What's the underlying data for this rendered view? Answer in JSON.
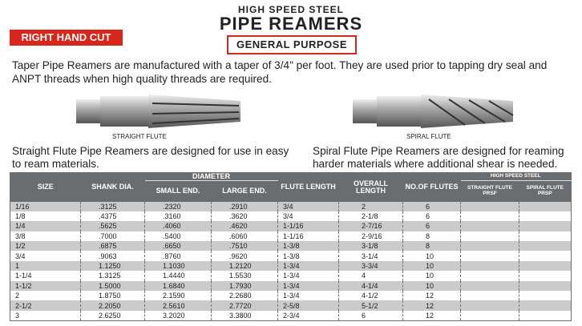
{
  "header": {
    "supertitle": "HIGH SPEED STEEL",
    "title": "PIPE REAMERS",
    "badge": "RIGHT HAND CUT",
    "category": "GENERAL PURPOSE"
  },
  "intro": "Taper Pipe Reamers are manufactured with a taper of 3/4\" per foot. They are used prior to tapping dry seal and ANPT threads when high quality threads are required.",
  "products": [
    {
      "label": "STRAIGHT FLUTE",
      "caption": "Straight Flute Pipe Reamers are designed for use in easy to ream materials."
    },
    {
      "label": "SPIRAL FLUTE",
      "caption": "Spiral Flute Pipe Reamers are designed for reaming harder materials where additional shear is needed."
    }
  ],
  "table": {
    "headers": {
      "size": "SIZE",
      "shank": "SHANK DIA.",
      "diameter": "DIAMETER",
      "small": "SMALL END.",
      "large": "LARGE END.",
      "flute": "FLUTE LENGTH",
      "overall": "OVERALL LENGTH",
      "flutes": "NO.OF FLUTES",
      "hss": "HIGH SPEED STEEL",
      "straight": "STRAIGHT FLUTE PRSF",
      "spiral": "SPIRAL FLUTE PRSP"
    },
    "rows": [
      [
        "1/16",
        ".3125",
        ".2320",
        ".2910",
        "3/4",
        "2",
        "6",
        "",
        ""
      ],
      [
        "1/8",
        ".4375",
        ".3160",
        ".3620",
        "3/4",
        "2-1/8",
        "6",
        "",
        ""
      ],
      [
        "1/4",
        ".5625",
        ".4060",
        ".4620",
        "1-1/16",
        "2-7/16",
        "6",
        "",
        ""
      ],
      [
        "3/8",
        ".7000",
        ".5400",
        ".6060",
        "1-1/16",
        "2-9/16",
        "8",
        "",
        ""
      ],
      [
        "1/2",
        ".6875",
        ".6650",
        ".7510",
        "1-3/8",
        "3-1/8",
        "8",
        "",
        ""
      ],
      [
        "3/4",
        ".9063",
        ".8760",
        ".9620",
        "1-3/8",
        "3-1/4",
        "10",
        "",
        ""
      ],
      [
        "1",
        "1.1250",
        "1.1030",
        "1.2120",
        "1-3/4",
        "3-3/4",
        "10",
        "",
        ""
      ],
      [
        "1-1/4",
        "1.3125",
        "1.4440",
        "1.5530",
        "1-3/4",
        "4",
        "10",
        "",
        ""
      ],
      [
        "1-1/2",
        "1.5000",
        "1.6840",
        "1.7930",
        "1-3/4",
        "4-1/4",
        "10",
        "",
        ""
      ],
      [
        "2",
        "1.8750",
        "2.1590",
        "2.2680",
        "1-3/4",
        "4-1/2",
        "12",
        "",
        ""
      ],
      [
        "2-1/2",
        "2.2050",
        "2.5610",
        "2.7720",
        "2-5/8",
        "5-1/2",
        "12",
        "",
        ""
      ],
      [
        "3",
        "2.6250",
        "3.2020",
        "3.3800",
        "2-3/4",
        "6",
        "12",
        "",
        ""
      ]
    ]
  },
  "colors": {
    "accent": "#d9261c",
    "table_header": "#6a6d70",
    "row_shade": "#cbcbcb"
  }
}
